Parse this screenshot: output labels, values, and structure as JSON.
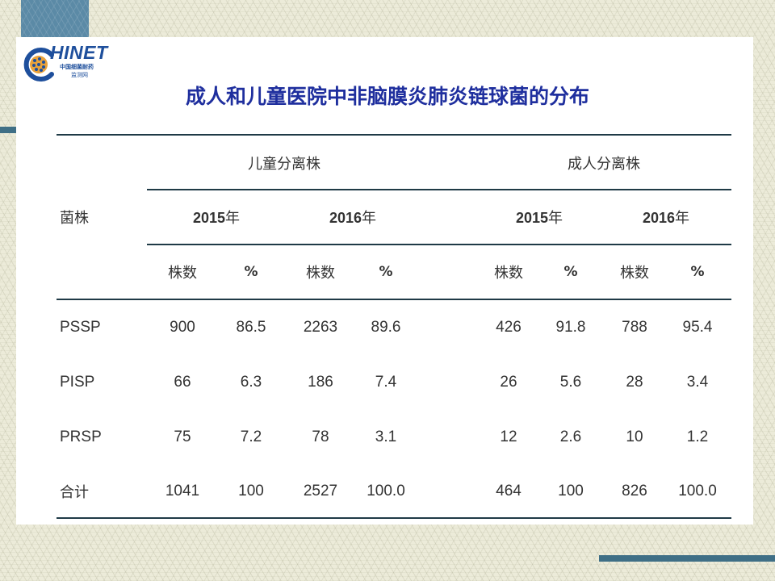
{
  "title": "成人和儿童医院中非脑膜炎肺炎链球菌的分布",
  "logo": {
    "wordmark": "HINET",
    "subtitle": "中国细菌耐药",
    "subtitle2": "监测网"
  },
  "table": {
    "strain_header": "菌株",
    "groups": [
      "儿童分离株",
      "成人分离株"
    ],
    "years": [
      {
        "year": "2015",
        "suffix": "年"
      },
      {
        "year": "2016",
        "suffix": "年"
      },
      {
        "year": "2015",
        "suffix": "年"
      },
      {
        "year": "2016",
        "suffix": "年"
      }
    ],
    "subheaders": [
      "株数",
      "%",
      "株数",
      "%",
      "株数",
      "%",
      "株数",
      "%"
    ],
    "rows": [
      {
        "label": "PSSP",
        "cells": [
          "900",
          "86.5",
          "2263",
          "89.6",
          "426",
          "91.8",
          "788",
          "95.4"
        ]
      },
      {
        "label": "PISP",
        "cells": [
          "66",
          "6.3",
          "186",
          "7.4",
          "26",
          "5.6",
          "28",
          "3.4"
        ]
      },
      {
        "label": "PRSP",
        "cells": [
          "75",
          "7.2",
          "78",
          "3.1",
          "12",
          "2.6",
          "10",
          "1.2"
        ]
      },
      {
        "label": "合计",
        "cells": [
          "1041",
          "100",
          "2527",
          "100.0",
          "464",
          "100",
          "826",
          "100.0"
        ]
      }
    ]
  },
  "colors": {
    "title": "#1f2f9e",
    "accent": "#3f6f86",
    "rule": "#1f3a46",
    "text": "#333333"
  }
}
